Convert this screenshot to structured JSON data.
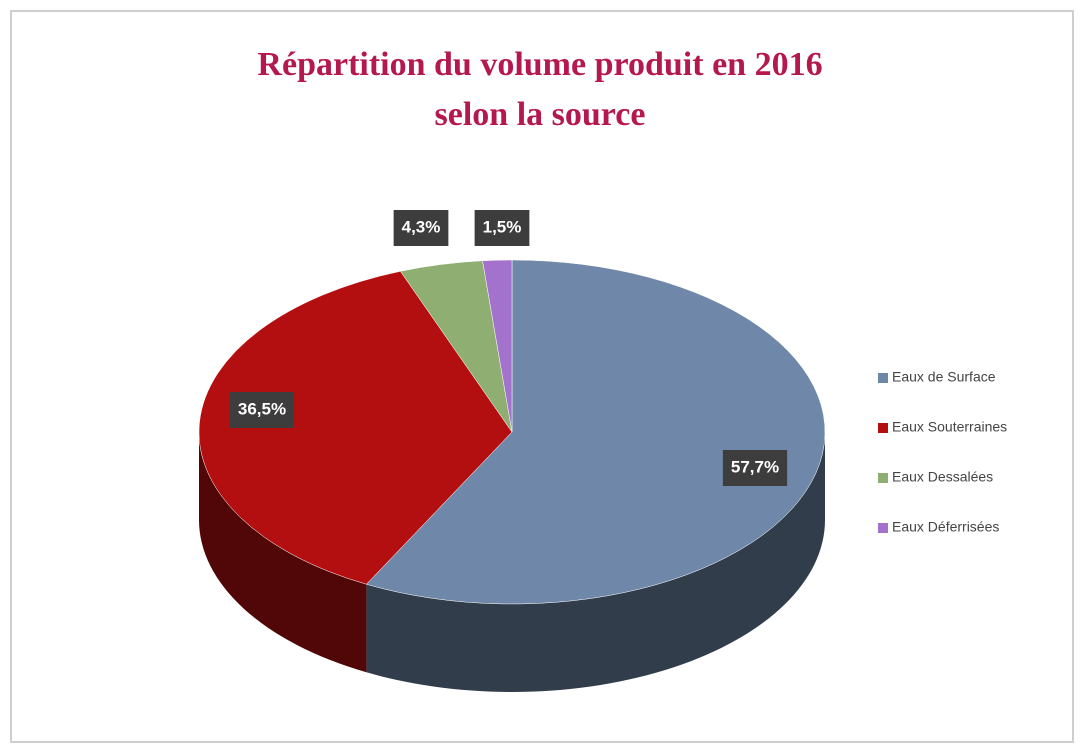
{
  "chart_data": {
    "type": "pie",
    "title": "Répartition du volume produit en 2016 selon la source",
    "categories": [
      "Eaux de Surface",
      "Eaux Souterraines",
      "Eaux Dessalées",
      "Eaux Déferrisées"
    ],
    "values": [
      57.7,
      36.5,
      4.3,
      1.5
    ],
    "value_labels": [
      "57,7%",
      "36,5%",
      "4,3%",
      "1,5%"
    ],
    "colors": [
      "#6f87a9",
      "#b40f10",
      "#8fae72",
      "#a372cc"
    ],
    "legend": "right"
  }
}
